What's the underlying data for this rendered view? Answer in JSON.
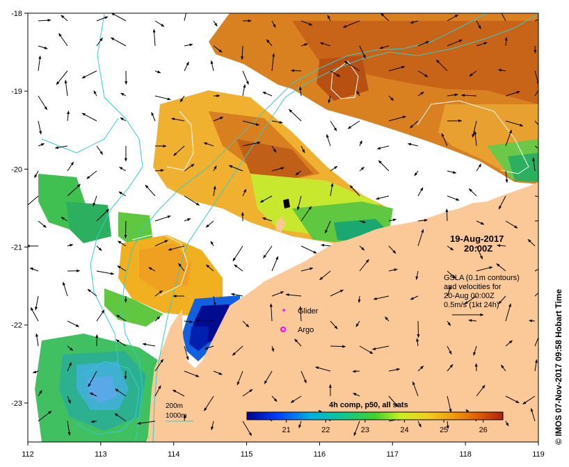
{
  "map": {
    "y_ticks": [
      {
        "value": -18,
        "label": "-18"
      },
      {
        "value": -19,
        "label": "-19"
      },
      {
        "value": -20,
        "label": "-20"
      },
      {
        "value": -21,
        "label": "-21"
      },
      {
        "value": -22,
        "label": "-22"
      },
      {
        "value": -23,
        "label": "-23"
      }
    ],
    "x_ticks": [
      {
        "value": 112,
        "label": "112"
      },
      {
        "value": 113,
        "label": "113"
      },
      {
        "value": 114,
        "label": "114"
      },
      {
        "value": 115,
        "label": "115"
      },
      {
        "value": 116,
        "label": "116"
      },
      {
        "value": 117,
        "label": "117"
      },
      {
        "value": 118,
        "label": "118"
      },
      {
        "value": 119,
        "label": "119"
      }
    ],
    "lon_range": [
      112,
      119
    ],
    "lat_range": [
      -23.5,
      -18
    ]
  },
  "datetime": {
    "date": "19-Aug-2017",
    "time": "20:00Z"
  },
  "info_text": [
    "GSLA (0.1m contours)",
    "and velocities for",
    "20-Aug 00:00Z",
    "0.5m/s (1kt 24h)"
  ],
  "legend": {
    "glider_label": "Glider",
    "argo_label": "Argo",
    "glider_color": "#cc33cc",
    "argo_color": "#ff00ff"
  },
  "bathymetry": {
    "line_200": "200m",
    "line_1000": "1000m",
    "color": "#33cccc"
  },
  "colorbar": {
    "title": "4h comp, p50, all sats",
    "range": [
      20,
      26.5
    ],
    "ticks": [
      {
        "value": 21,
        "label": "21"
      },
      {
        "value": 22,
        "label": "22"
      },
      {
        "value": 23,
        "label": "23"
      },
      {
        "value": 24,
        "label": "24"
      },
      {
        "value": 25,
        "label": "25"
      },
      {
        "value": 26,
        "label": "26"
      }
    ]
  },
  "credit": "© IMOS 07-Nov-2017 09:58 Hobart Time",
  "colors": {
    "land": "#fbc898",
    "bathy": "#33cccc"
  }
}
